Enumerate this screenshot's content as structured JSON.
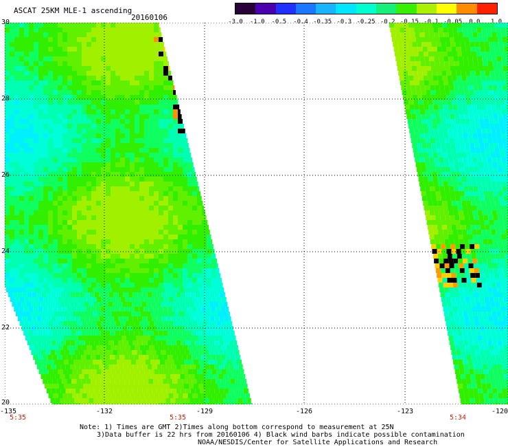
{
  "header": {
    "title": "ASCAT 25KM MLE-1 ascending",
    "date": "20160106"
  },
  "colorbar": {
    "labels": [
      "-3.0",
      "-1.0",
      "-0.5",
      "-0.4",
      "-0.35",
      "-0.3",
      "-0.25",
      "-0.2",
      "-0.15",
      "-0.1",
      "-0.05",
      "0.0",
      "1.0"
    ],
    "colors": [
      "#2a0038",
      "#4b00b0",
      "#2030ff",
      "#1a78ff",
      "#18b4ff",
      "#00e6ff",
      "#00ffd0",
      "#14f07a",
      "#36f000",
      "#aaf000",
      "#ffff00",
      "#ff8c00",
      "#ff2000"
    ]
  },
  "map": {
    "lat_labels": [
      "30",
      "28",
      "26",
      "24",
      "22",
      "20"
    ],
    "lon_labels": [
      "-135",
      "-132",
      "-129",
      "-126",
      "-123",
      "-120"
    ],
    "time_labels": [
      "5:35",
      "5:35",
      "5:34"
    ],
    "lat_range": [
      20,
      30
    ],
    "lon_range": [
      -135,
      -120
    ],
    "grid": true
  },
  "footer": {
    "note_line1": "Note: 1) Times are GMT 2)Times along bottom correspond to measurement at 25N",
    "note_line2": "3)Data buffer is 22 hrs from 20160106 4) Black wind barbs indicate possible contamination",
    "credit": "NOAA/NESDIS/Center for Satellite Applications and Research"
  }
}
